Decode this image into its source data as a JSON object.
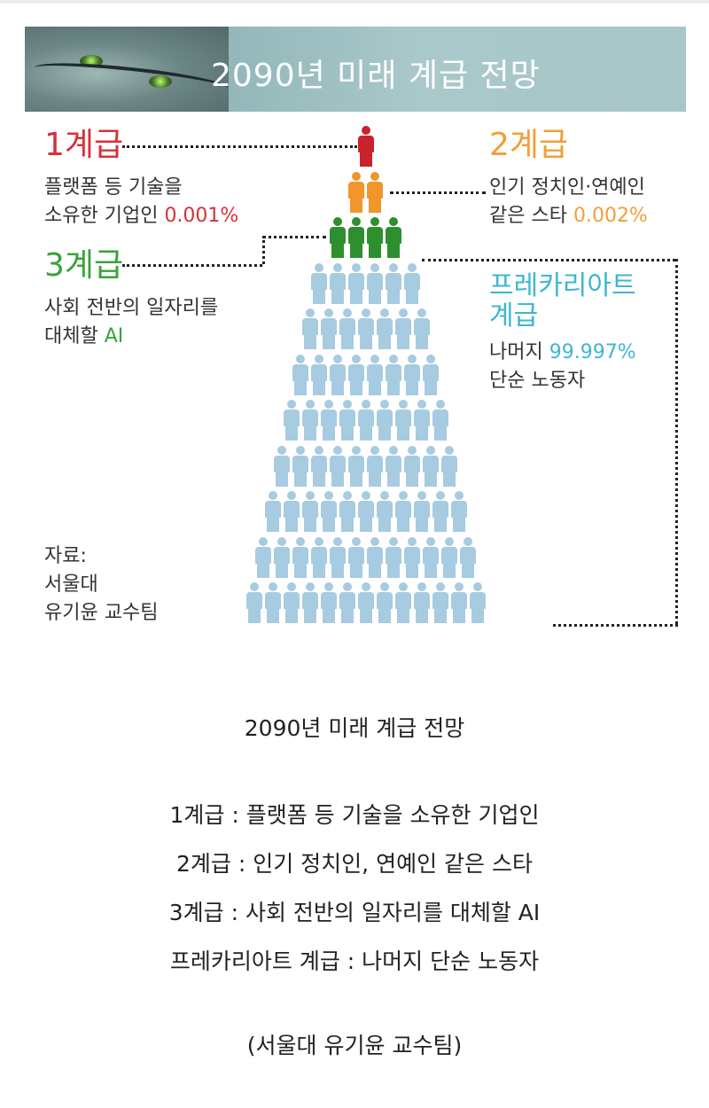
{
  "infographic": {
    "banner_title": "2090년 미래 계급 전망",
    "tier1": {
      "head": "1계급",
      "line1": "플랫폼 등 기술을",
      "line2_prefix": "소유한 기업인 ",
      "percent": "0.001%",
      "color": "#d5313a"
    },
    "tier2": {
      "head": "2계급",
      "line1": "인기 정치인·연예인",
      "line2_prefix": "같은 스타 ",
      "percent": "0.002%",
      "color": "#f0a03a"
    },
    "tier3": {
      "head": "3계급",
      "line1": "사회 전반의 일자리를",
      "line2_prefix": "대체할 ",
      "ai": "AI",
      "color": "#3aa23a"
    },
    "precariat": {
      "head1": "프레카리아트",
      "head2": "계급",
      "line1_prefix": "나머지 ",
      "percent": "99.997%",
      "line2": "단순 노동자",
      "color": "#3fb6d0"
    },
    "source": {
      "line1": "자료:",
      "line2": "서울대",
      "line3": "유기윤 교수팀"
    },
    "pyramid": {
      "row_counts": [
        1,
        2,
        4,
        6,
        7,
        8,
        9,
        10,
        11,
        12,
        13
      ],
      "colors": {
        "red": "#c8232c",
        "orange": "#f0962a",
        "green": "#2e8f2e",
        "blue": "#a7cbe0"
      }
    }
  },
  "caption": {
    "title": "2090년 미래 계급 전망",
    "line1": "1계급 : 플랫폼 등 기술을 소유한 기업인",
    "line2": "2계급 : 인기 정치인, 연예인 같은 스타",
    "line3": "3계급 : 사회 전반의 일자리를 대체할 AI",
    "line4": "프레카리아트 계급 : 나머지 단순 노동자",
    "source": "(서울대 유기윤 교수팀)"
  }
}
